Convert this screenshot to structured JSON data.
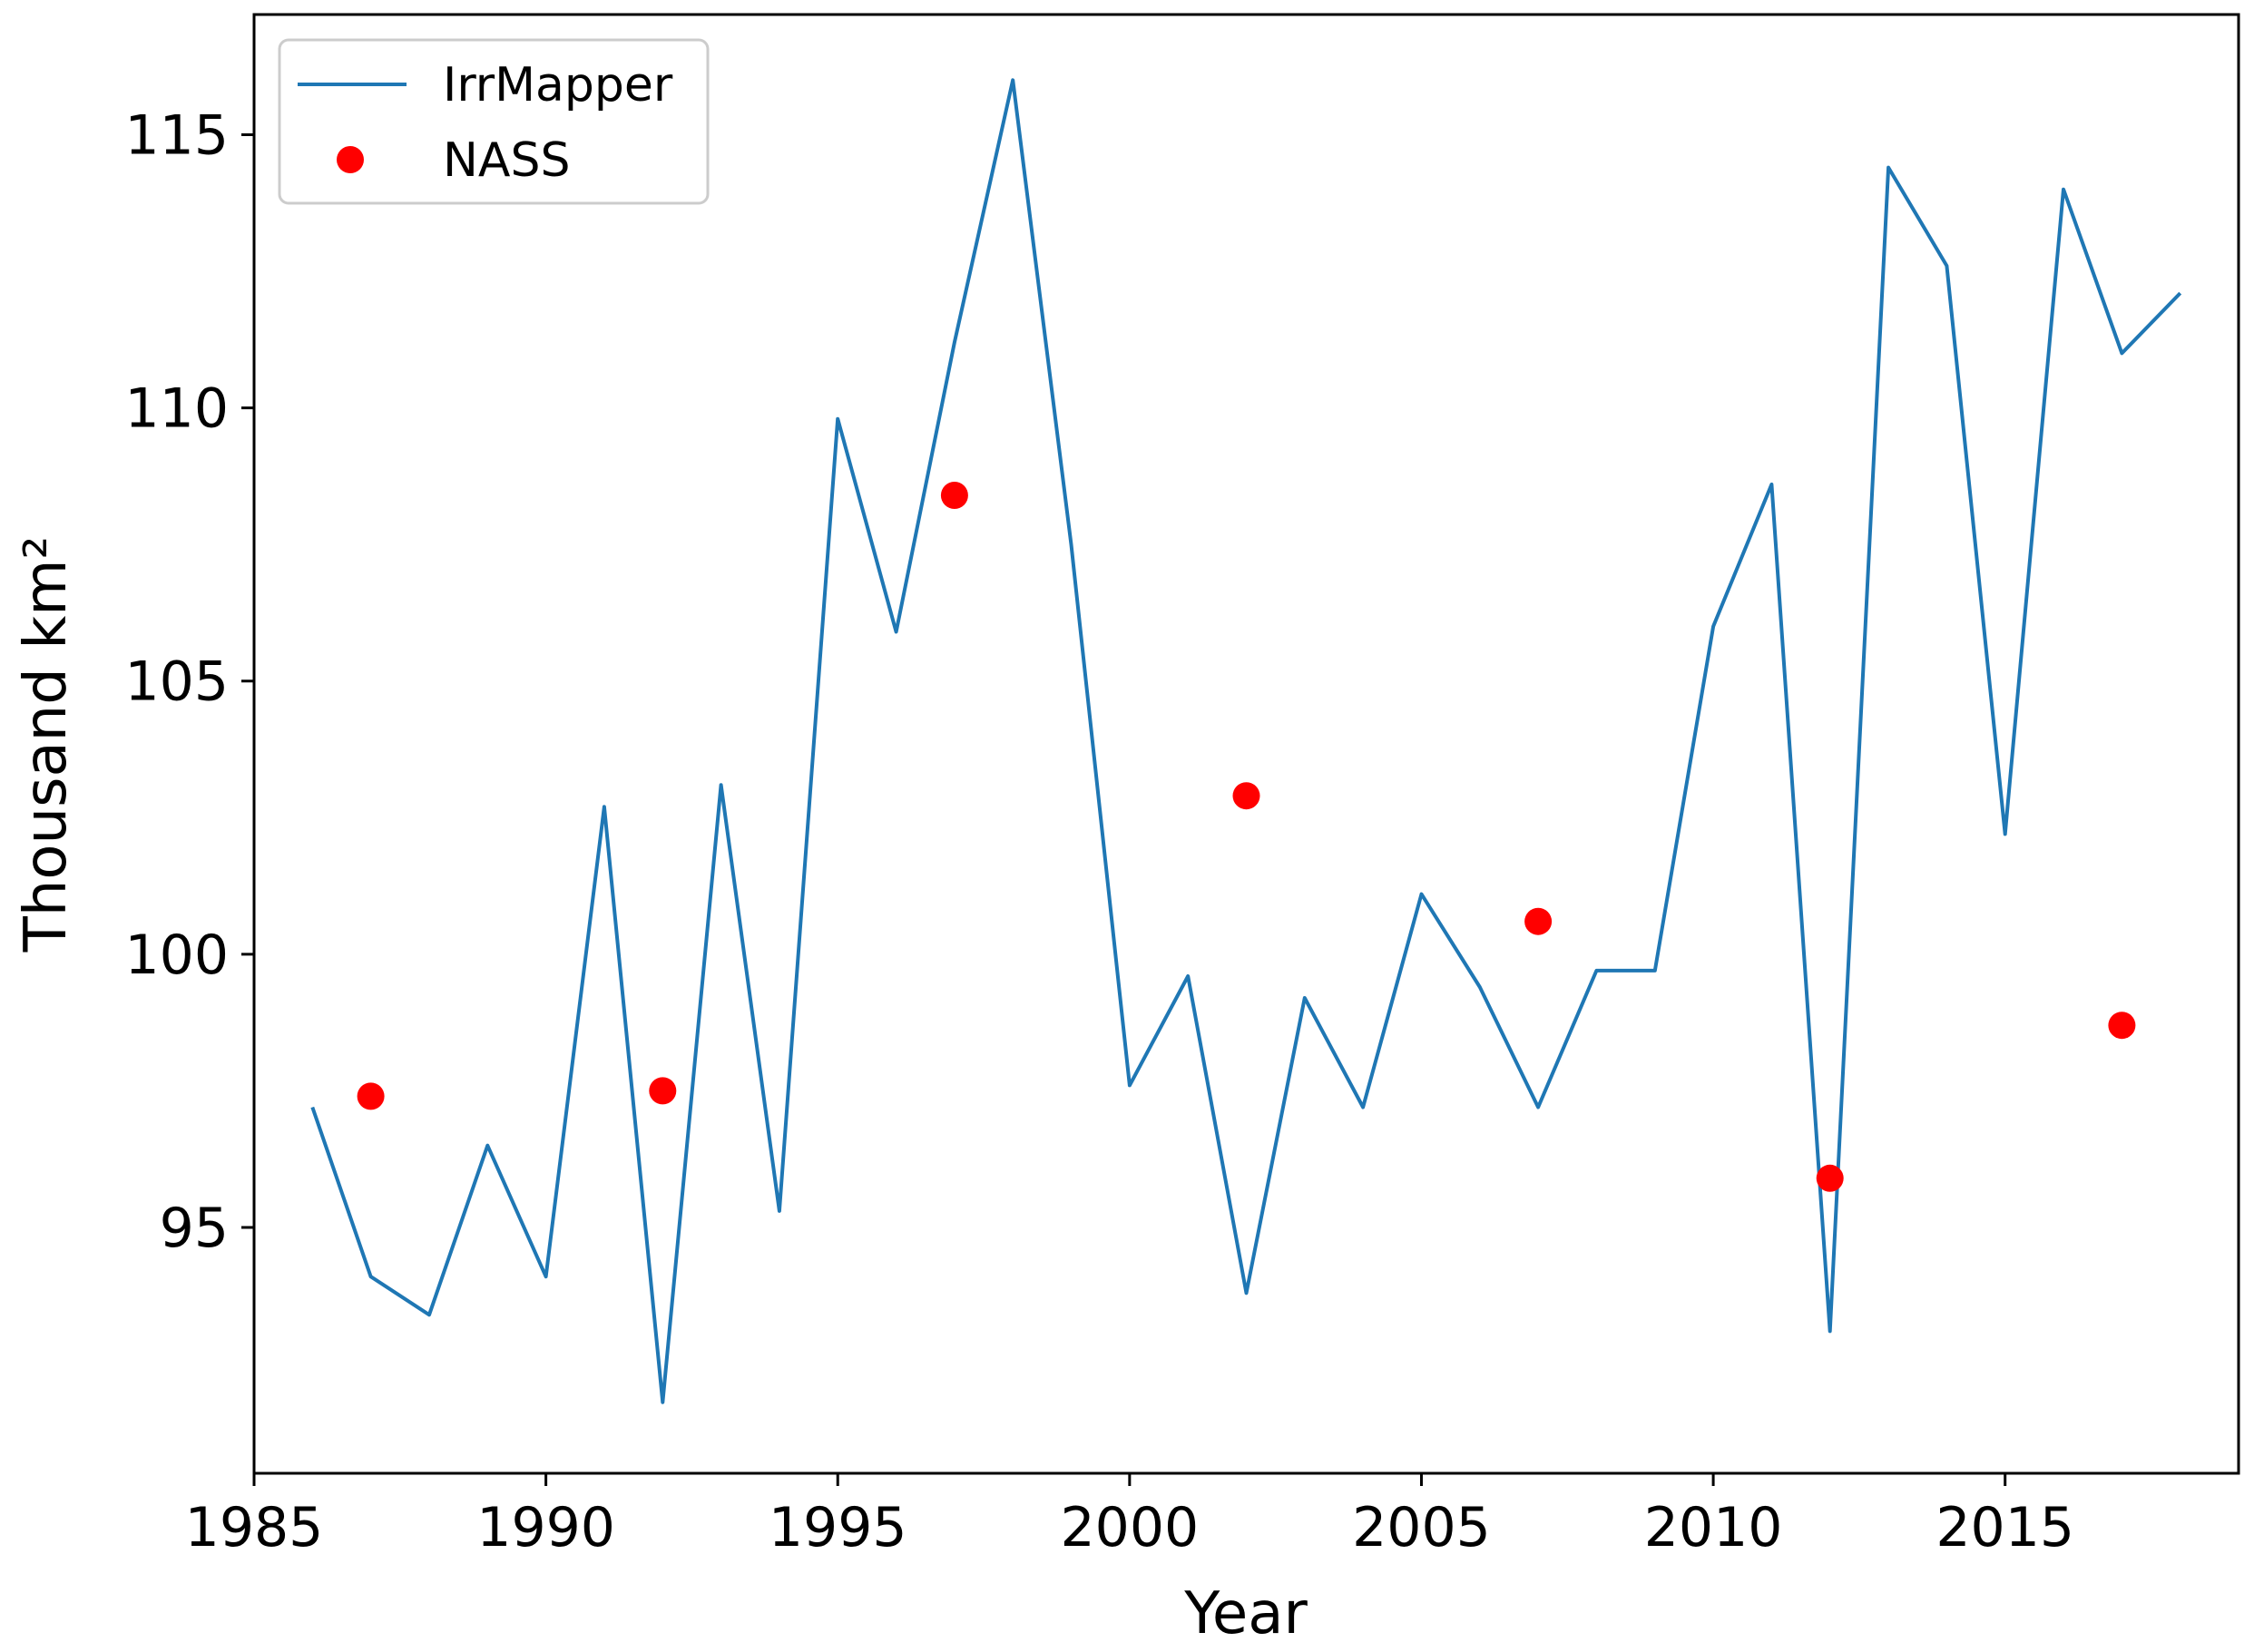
{
  "chart_data": {
    "type": "line",
    "xlabel": "Year",
    "ylabel": "Thousand km²",
    "xlim": [
      1985,
      2019
    ],
    "ylim": [
      90.5,
      117.2
    ],
    "xticks": [
      1985,
      1990,
      1995,
      2000,
      2005,
      2010,
      2015
    ],
    "yticks": [
      95,
      100,
      105,
      110,
      115
    ],
    "grid": false,
    "legend_position": "top-left",
    "series": [
      {
        "name": "IrrMapper",
        "kind": "line",
        "color": "#1f77b4",
        "x": [
          1986,
          1987,
          1988,
          1989,
          1990,
          1991,
          1992,
          1993,
          1994,
          1995,
          1996,
          1997,
          1998,
          1999,
          2000,
          2001,
          2002,
          2003,
          2004,
          2005,
          2006,
          2007,
          2008,
          2009,
          2010,
          2011,
          2012,
          2013,
          2014,
          2015,
          2016,
          2017,
          2018
        ],
        "values": [
          97.2,
          94.1,
          93.4,
          96.5,
          94.1,
          102.7,
          91.8,
          103.1,
          95.3,
          109.8,
          105.9,
          111.2,
          116.0,
          107.5,
          97.6,
          99.6,
          93.8,
          99.2,
          97.2,
          101.1,
          99.4,
          97.2,
          99.7,
          99.7,
          106.0,
          108.6,
          93.1,
          114.4,
          112.6,
          102.2,
          114.0,
          111.0,
          112.1
        ]
      },
      {
        "name": "NASS",
        "kind": "scatter",
        "color": "#ff0000",
        "x": [
          1987,
          1992,
          1997,
          2002,
          2007,
          2012,
          2017
        ],
        "values": [
          97.4,
          97.5,
          108.4,
          102.9,
          100.6,
          95.9,
          98.7
        ]
      }
    ]
  }
}
